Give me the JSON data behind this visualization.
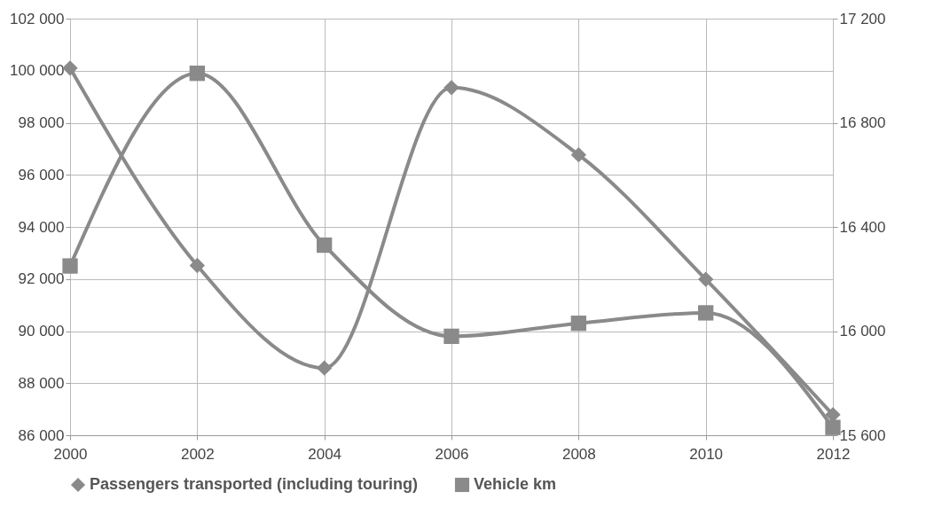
{
  "chart_data": {
    "type": "line",
    "x": [
      2000,
      2002,
      2004,
      2006,
      2008,
      2010,
      2012
    ],
    "series": [
      {
        "name": "Passengers transported (including touring)",
        "color": "#8a8a8a",
        "marker": "diamond",
        "values": [
          100100,
          92520,
          88580,
          99350,
          96770,
          91990,
          86790
        ]
      },
      {
        "name": "Vehicle km",
        "color": "#8a8a8a",
        "marker": "square",
        "axis": "y2",
        "values": [
          16250,
          16990,
          16330,
          15980,
          16030,
          16070,
          15630
        ]
      }
    ],
    "xlim": [
      2000,
      2012
    ],
    "xticks": [
      2000,
      2002,
      2004,
      2006,
      2008,
      2010,
      2012
    ],
    "ylim": [
      86000,
      102000
    ],
    "yticks": [
      {
        "value": 86000,
        "label": "86 000"
      },
      {
        "value": 88000,
        "label": "88 000"
      },
      {
        "value": 90000,
        "label": "90 000"
      },
      {
        "value": 92000,
        "label": "92 000"
      },
      {
        "value": 94000,
        "label": "94 000"
      },
      {
        "value": 96000,
        "label": "96 000"
      },
      {
        "value": 98000,
        "label": "98 000"
      },
      {
        "value": 100000,
        "label": "100 000"
      },
      {
        "value": 102000,
        "label": "102 000"
      }
    ],
    "y2lim": [
      15600,
      17200
    ],
    "y2ticks": [
      {
        "value": 15600,
        "label": "15 600"
      },
      {
        "value": 16000,
        "label": "16 000"
      },
      {
        "value": 16400,
        "label": "16 400"
      },
      {
        "value": 16800,
        "label": "16 800"
      },
      {
        "value": 17200,
        "label": "17 200"
      }
    ],
    "grid": true,
    "legend": "bottom",
    "line_style": "solid"
  }
}
